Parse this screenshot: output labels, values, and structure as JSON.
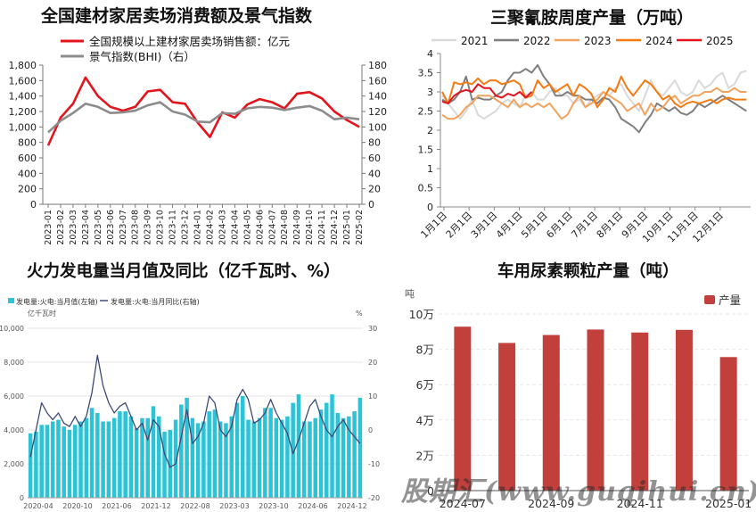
{
  "colors": {
    "red": "#e3141c",
    "gray": "#8c8c8c",
    "cyan": "#2cc3d6",
    "navy": "#3c4a78",
    "bar_red": "#c1403c"
  },
  "chart_data": [
    {
      "type": "line",
      "title": "全国建材家居卖场消费额及景气指数",
      "legend": [
        "全国规模以上建材家居卖场销售额：亿元",
        "景气指数(BHI)（右）"
      ],
      "categories": [
        "2023-01",
        "2023-02",
        "2023-03",
        "2023-04",
        "2023-05",
        "2023-06",
        "2023-07",
        "2023-08",
        "2023-09",
        "2023-10",
        "2023-11",
        "2023-12",
        "2024-01",
        "2024-02",
        "2024-03",
        "2024-04",
        "2024-05",
        "2024-06",
        "2024-07",
        "2024-08",
        "2024-09",
        "2024-10",
        "2024-11",
        "2024-12",
        "2025-01",
        "2025-02"
      ],
      "yticks_left": [
        "0",
        "200",
        "400",
        "600",
        "800",
        "1,000",
        "1,200",
        "1,400",
        "1,600",
        "1,800"
      ],
      "yticks_right": [
        "0",
        "20",
        "40",
        "60",
        "80",
        "100",
        "120",
        "140",
        "160",
        "180"
      ],
      "series": [
        {
          "name": "全国规模以上建材家居卖场销售额：亿元",
          "axis": "left",
          "color": "#e3141c",
          "values": [
            760,
            1120,
            1300,
            1640,
            1400,
            1260,
            1210,
            1260,
            1460,
            1480,
            1320,
            1300,
            1060,
            870,
            1190,
            1120,
            1290,
            1360,
            1320,
            1240,
            1430,
            1450,
            1370,
            1200,
            1090,
            1000
          ]
        },
        {
          "name": "景气指数(BHI)（右）",
          "axis": "right",
          "color": "#8c8c8c",
          "values": [
            93,
            108,
            118,
            130,
            126,
            118,
            119,
            121,
            128,
            132,
            120,
            116,
            107,
            106,
            118,
            117,
            124,
            126,
            125,
            122,
            125,
            127,
            121,
            110,
            112,
            110
          ]
        }
      ],
      "ylim_left": [
        0,
        1800
      ],
      "ylim_right": [
        0,
        180
      ]
    },
    {
      "type": "line",
      "title": "三聚氰胺周度产量（万吨）",
      "legend": [
        "2021",
        "2022",
        "2023",
        "2024",
        "2025"
      ],
      "xticks": [
        "1月1日",
        "2月1日",
        "3月1日",
        "4月1日",
        "5月1日",
        "6月1日",
        "7月1日",
        "8月1日",
        "9月1日",
        "10月1日",
        "11月1日",
        "12月1日"
      ],
      "yticks": [
        "0",
        "0.5",
        "1",
        "1.5",
        "2",
        "2.5",
        "3",
        "3.5",
        "4"
      ],
      "ylim": [
        0,
        4
      ],
      "series": [
        {
          "name": "2021",
          "color": "#d9d9d9",
          "values": [
            2.9,
            2.7,
            2.5,
            2.3,
            2.5,
            2.8,
            2.4,
            2.3,
            2.4,
            2.5,
            2.7,
            2.8,
            2.7,
            2.6,
            2.9,
            3.0,
            2.8,
            2.8,
            3.0,
            3.1,
            2.9,
            2.9,
            2.7,
            2.8,
            2.6,
            2.8,
            2.9,
            3.0,
            2.9,
            3.1,
            3.2,
            2.9,
            2.7,
            2.5,
            2.9,
            3.3,
            3.0,
            2.9,
            3.1,
            3.3,
            3.0,
            2.9,
            3.0,
            3.3,
            3.1,
            3.2,
            3.4,
            3.5,
            3.1,
            3.2,
            3.5,
            3.55
          ]
        },
        {
          "name": "2022",
          "color": "#7f7f7f",
          "values": [
            2.8,
            2.7,
            2.8,
            3.0,
            3.4,
            2.8,
            2.85,
            2.8,
            2.8,
            2.9,
            3.0,
            3.3,
            3.5,
            3.5,
            3.6,
            3.5,
            3.7,
            3.4,
            3.2,
            2.9,
            2.9,
            3.0,
            2.9,
            2.9,
            2.8,
            2.8,
            2.7,
            2.85,
            2.8,
            2.6,
            2.3,
            2.2,
            2.1,
            1.95,
            2.2,
            2.4,
            2.7,
            2.6,
            2.5,
            2.6,
            2.45,
            2.4,
            2.5,
            2.7,
            2.6,
            2.7,
            2.8,
            2.9,
            2.8,
            2.7,
            2.6,
            2.5
          ]
        },
        {
          "name": "2023",
          "color": "#f2a35e",
          "values": [
            2.4,
            2.3,
            2.3,
            2.4,
            2.6,
            2.7,
            2.9,
            2.9,
            2.9,
            2.8,
            2.7,
            2.6,
            2.8,
            2.6,
            2.7,
            2.6,
            2.7,
            2.6,
            2.7,
            2.5,
            2.3,
            2.4,
            2.7,
            2.9,
            2.6,
            2.7,
            2.8,
            3.0,
            2.9,
            2.8,
            2.7,
            2.5,
            2.6,
            2.7,
            2.4,
            2.7,
            2.5,
            2.6,
            2.8,
            2.9,
            2.7,
            2.8,
            2.9,
            2.9,
            3.0,
            3.0,
            3.1,
            3.0,
            3.0,
            3.1,
            3.0,
            3.0
          ]
        },
        {
          "name": "2024",
          "color": "#f57a12",
          "values": [
            3.0,
            2.7,
            3.25,
            3.2,
            3.25,
            3.2,
            3.35,
            3.2,
            3.3,
            3.3,
            3.2,
            3.25,
            3.3,
            3.2,
            2.85,
            2.9,
            3.3,
            3.1,
            3.2,
            3.0,
            3.1,
            3.2,
            2.9,
            3.2,
            3.1,
            2.95,
            2.6,
            2.8,
            3.1,
            3.0,
            3.4,
            3.1,
            2.9,
            3.1,
            3.3,
            3.2,
            3.0,
            2.8,
            2.9,
            2.7,
            2.6,
            2.7,
            2.75,
            2.7,
            2.75,
            2.8,
            2.7,
            2.8,
            2.85,
            2.8,
            2.8,
            2.8
          ]
        },
        {
          "name": "2025",
          "color": "#e3141c",
          "values": [
            2.75,
            2.7,
            2.9,
            3.0,
            3.05,
            3.0,
            3.2,
            3.1,
            3.1,
            2.9,
            2.85,
            2.95,
            2.9,
            3.0,
            2.85,
            3.0
          ]
        }
      ]
    },
    {
      "type": "bar",
      "title": "火力发电量当月值及同比（亿千瓦时、%）",
      "legend": [
        "发电量:火电:当月值(左轴)",
        "发电量:火电:当月同比(右轴)"
      ],
      "left_unit": "亿千瓦时",
      "right_unit": "%",
      "yticks_left": [
        "0",
        "2,000",
        "4,000",
        "6,000",
        "8,000",
        "10,000"
      ],
      "yticks_right": [
        "-20",
        "-10",
        "0",
        "10",
        "20",
        "30"
      ],
      "xticks": [
        "2020-04",
        "2020-10",
        "2021-06",
        "2021-12",
        "2022-08",
        "2023-03",
        "2023-10",
        "2024-06",
        "2024-12"
      ],
      "ylim_left": [
        0,
        10000
      ],
      "ylim_right": [
        -20,
        30
      ],
      "series": [
        {
          "name": "发电量:火电:当月值(左轴)",
          "axis": "left",
          "color": "#2cc3d6",
          "values": [
            3800,
            3900,
            4300,
            4300,
            4500,
            4600,
            4200,
            4000,
            4300,
            4500,
            4700,
            5300,
            5000,
            4500,
            4500,
            4700,
            5100,
            5100,
            4800,
            4100,
            4700,
            4700,
            5400,
            4800,
            3900,
            4000,
            4600,
            5500,
            5900,
            4700,
            4400,
            4500,
            5100,
            5200,
            4500,
            4400,
            4800,
            5600,
            6000,
            4600,
            4500,
            4700,
            5300,
            5300,
            4700,
            4600,
            4800,
            5600,
            6100,
            4500,
            4500,
            4700,
            5200,
            5600,
            6100,
            5000,
            4700,
            4800,
            5100,
            5900
          ]
        },
        {
          "name": "发电量:火电:当月同比(右轴)",
          "axis": "right",
          "color": "#3c4a78",
          "values": [
            -8,
            0,
            8,
            5,
            3,
            5,
            2,
            1,
            4,
            1,
            4,
            11,
            22,
            13,
            8,
            5,
            7,
            8,
            4,
            0,
            2,
            -3,
            3,
            1,
            -7,
            -11,
            -10,
            -2,
            6,
            -4,
            -2,
            2,
            10,
            8,
            0,
            -2,
            1,
            9,
            12,
            9,
            2,
            3,
            5,
            9,
            5,
            2,
            -1,
            -7,
            -3,
            2,
            7,
            9,
            4,
            0,
            -2,
            1,
            3,
            0,
            -2,
            -4
          ]
        }
      ]
    },
    {
      "type": "bar",
      "title": "车用尿素颗粒产量（吨）",
      "legend": [
        "产量"
      ],
      "unit": "吨",
      "yticks": [
        "0",
        "2万",
        "4万",
        "6万",
        "8万",
        "10万"
      ],
      "ylim": [
        0,
        100000
      ],
      "categories": [
        "2024-07",
        "2024-08",
        "2024-09",
        "2024-10",
        "2024-11",
        "2024-12",
        "2025-01"
      ],
      "xtick_labels": [
        "2024-07",
        "",
        "2024-09",
        "",
        "2024-11",
        "",
        "2025-01"
      ],
      "values": [
        92800,
        83600,
        88100,
        91200,
        89500,
        91000,
        75600
      ]
    }
  ]
}
